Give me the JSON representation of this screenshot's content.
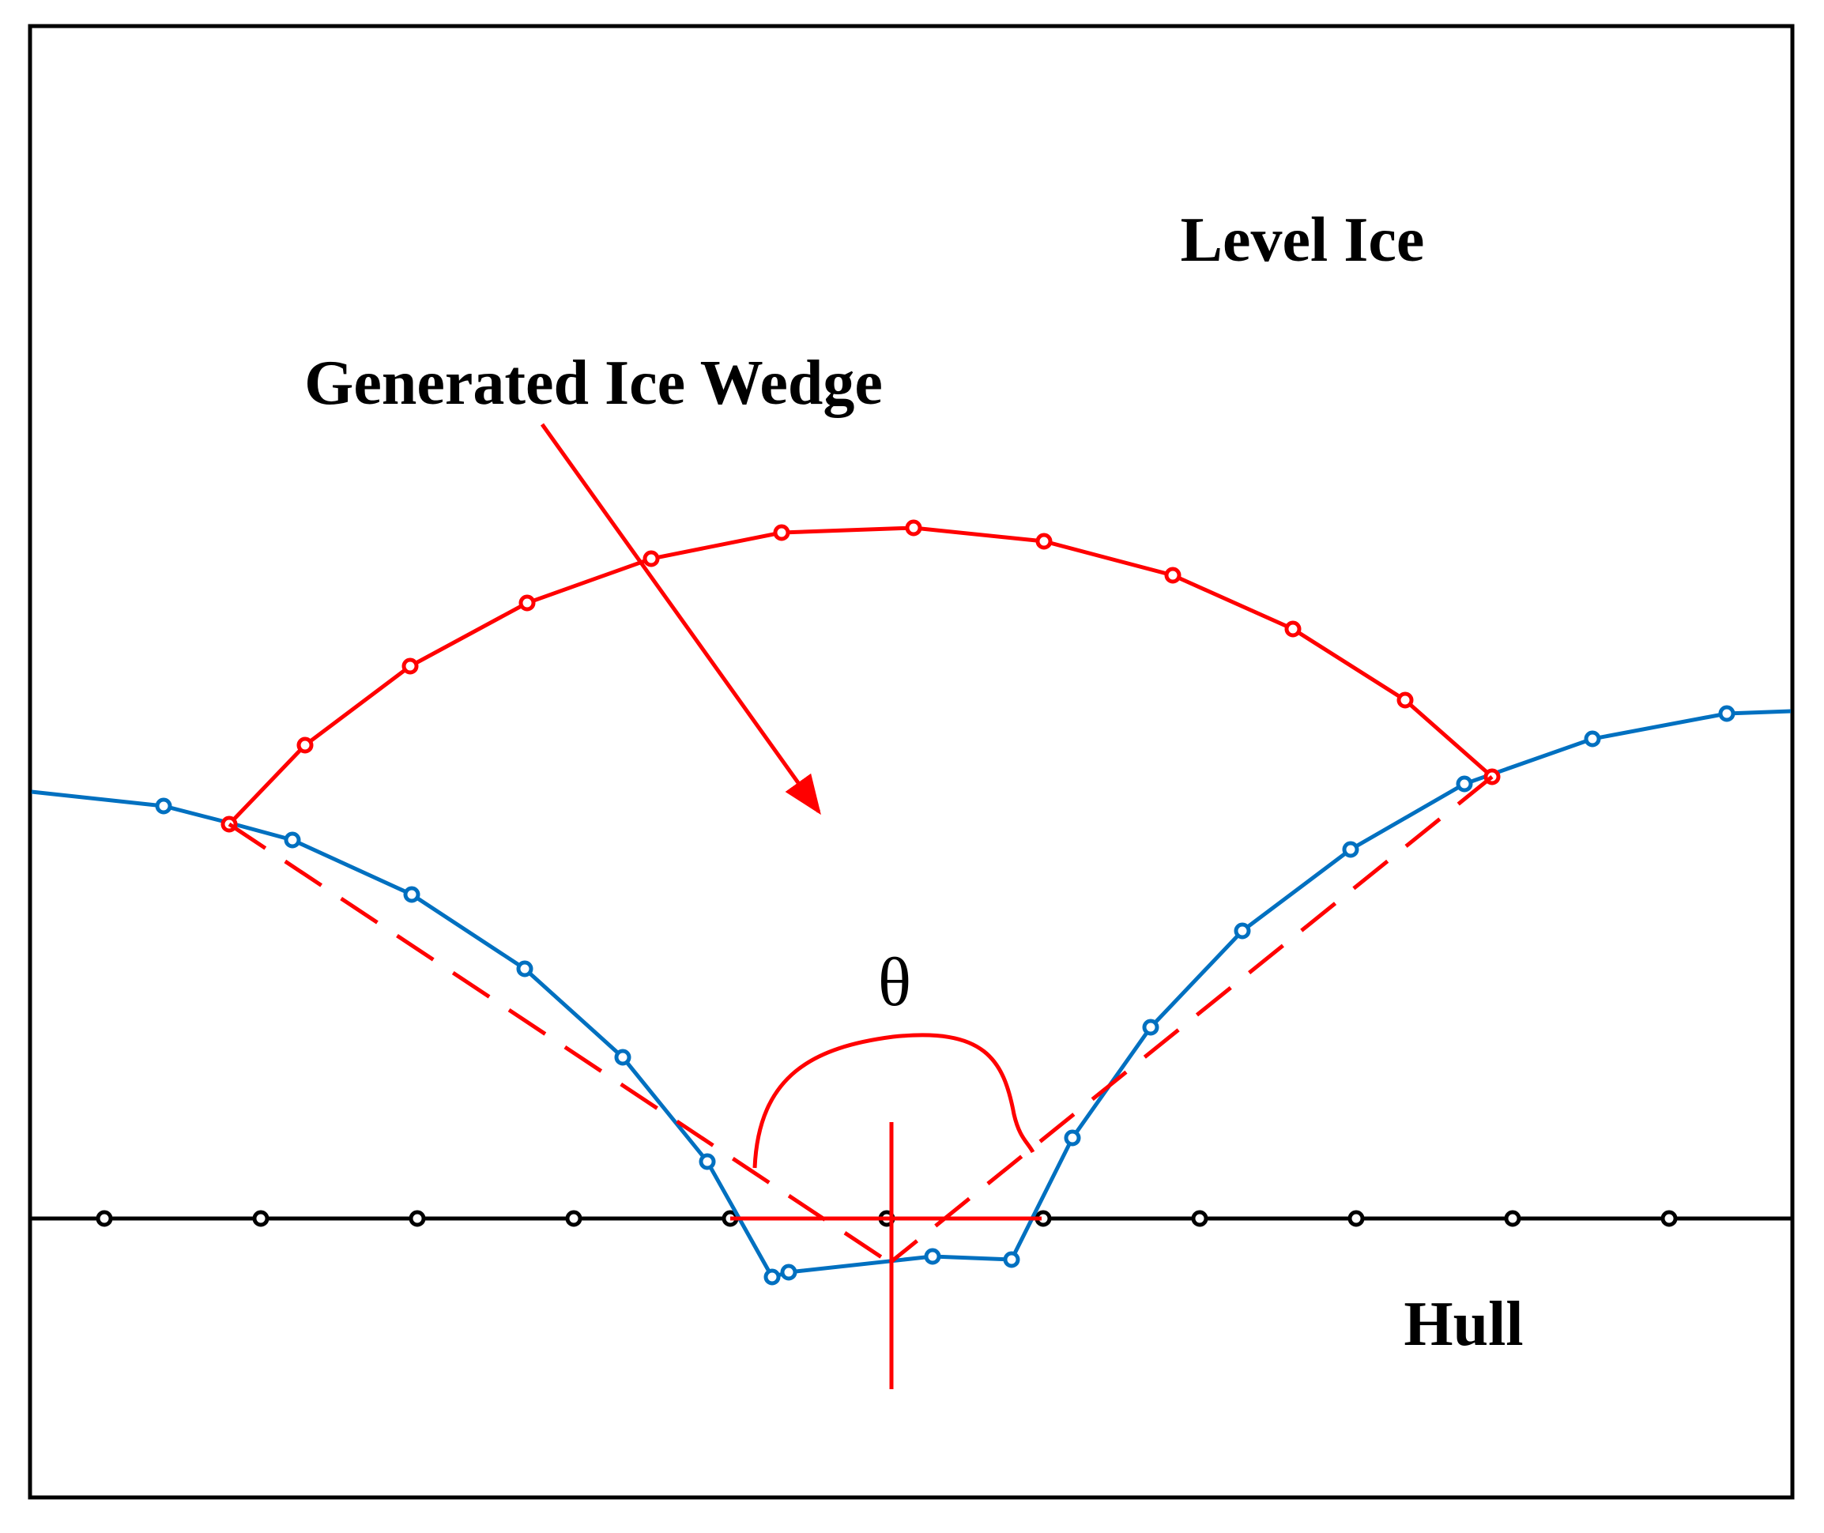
{
  "labels": {
    "level_ice": "Level Ice",
    "generated_ice_wedge": "Generated Ice Wedge",
    "theta": "θ",
    "hull": "Hull"
  },
  "colors": {
    "frame": "#000000",
    "hull_line": "#000000",
    "ice_edge": "#0070C0",
    "wedge": "#FF0000",
    "text": "#000000"
  }
}
